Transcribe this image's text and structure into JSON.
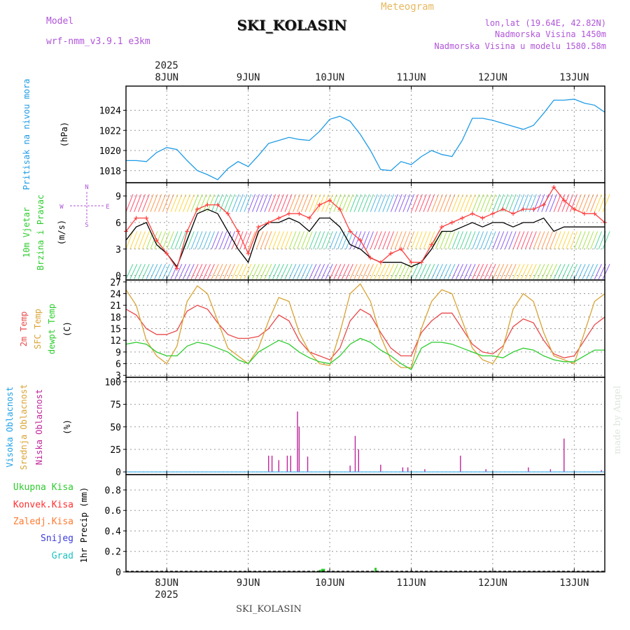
{
  "header": {
    "model_label": "Model",
    "model_name": "wrf-nmm_v3.9.1 e3km",
    "station": "SKI_KOLASIN",
    "product": "Meteogram",
    "coords": "lon,lat (19.64E, 42.82N)",
    "elevation": "Nadmorska Visina 1450m",
    "model_elevation": "Nadmorska Visina u modelu 1580.58m",
    "year": "2025",
    "footer_station": "SKI_KOLASIN",
    "credit": "made by Angel"
  },
  "colors": {
    "pressure": "#1e9be6",
    "wind_speed": "#000000",
    "wind_gust": "#ff4040",
    "temp_2m": "#e84a4a",
    "temp_sfc": "#d9a335",
    "dewpoint": "#2ecc2e",
    "cloud_high": "#1ea0e6",
    "cloud_mid": "#d9a335",
    "cloud_low": "#c0249a",
    "precip_total": "#2ecc2e",
    "precip_conv": "#ff3030",
    "precip_frozen": "#ff7a30",
    "snow": "#3a3adf",
    "hail": "#20c0c0",
    "title_purple": "#b055d8"
  },
  "time_axis": {
    "day_labels": [
      "8JUN",
      "9JUN",
      "10JUN",
      "11JUN",
      "12JUN",
      "13JUN"
    ],
    "day_positions_hours": [
      12,
      36,
      60,
      84,
      108,
      132
    ],
    "range_hours": [
      0,
      141
    ]
  },
  "chart_data": [
    {
      "type": "line",
      "panel": "pressure",
      "title": "Pritisak na nivou mora",
      "ylabel": "(hPa)",
      "ylim": [
        1016.8,
        1026.4
      ],
      "yticks": [
        1018,
        1020,
        1022,
        1024
      ],
      "x": [
        0,
        3,
        6,
        9,
        12,
        15,
        18,
        21,
        24,
        27,
        30,
        33,
        36,
        39,
        42,
        45,
        48,
        51,
        54,
        57,
        60,
        63,
        66,
        69,
        72,
        75,
        78,
        81,
        84,
        87,
        90,
        93,
        96,
        99,
        102,
        105,
        108,
        111,
        114,
        117,
        120,
        123,
        126,
        129,
        132,
        135,
        138,
        141
      ],
      "series": [
        {
          "name": "Pritisak",
          "values": [
            1019.0,
            1019.0,
            1018.9,
            1019.8,
            1020.3,
            1020.1,
            1019.0,
            1018.0,
            1017.6,
            1017.1,
            1018.2,
            1018.9,
            1018.4,
            1019.5,
            1020.7,
            1021.0,
            1021.3,
            1021.1,
            1021.0,
            1021.9,
            1023.1,
            1023.4,
            1022.9,
            1021.6,
            1020.0,
            1018.1,
            1018.0,
            1018.9,
            1018.6,
            1019.4,
            1020.0,
            1019.6,
            1019.4,
            1021.0,
            1023.2,
            1023.2,
            1023.0,
            1022.7,
            1022.4,
            1022.1,
            1022.5,
            1023.7,
            1025.0,
            1025.0,
            1025.1,
            1024.7,
            1024.5,
            1023.8
          ]
        }
      ]
    },
    {
      "type": "line",
      "panel": "wind",
      "title": "10m Vjetar Brzina i Pravac",
      "ylabel": "(m/s)",
      "ylim": [
        -0.5,
        10.5
      ],
      "yticks": [
        0,
        3,
        6,
        9
      ],
      "compass_labels": {
        "n": "N",
        "s": "S",
        "e": "E",
        "w": "W"
      },
      "x": [
        0,
        3,
        6,
        9,
        12,
        15,
        18,
        21,
        24,
        27,
        30,
        33,
        36,
        39,
        42,
        45,
        48,
        51,
        54,
        57,
        60,
        63,
        66,
        69,
        72,
        75,
        78,
        81,
        84,
        87,
        90,
        93,
        96,
        99,
        102,
        105,
        108,
        111,
        114,
        117,
        120,
        123,
        126,
        129,
        132,
        135,
        138,
        141
      ],
      "series": [
        {
          "name": "Brzina",
          "values": [
            4.0,
            5.5,
            6.0,
            3.5,
            2.5,
            1.0,
            4.0,
            7.0,
            7.5,
            7.0,
            5.0,
            3.0,
            1.5,
            5.0,
            6.0,
            6.0,
            6.5,
            6.0,
            5.0,
            6.5,
            6.5,
            5.5,
            3.5,
            3.0,
            2.0,
            1.5,
            1.5,
            1.5,
            1.0,
            1.5,
            3.0,
            5.0,
            5.0,
            5.5,
            6.0,
            5.5,
            6.0,
            6.0,
            5.5,
            6.0,
            6.0,
            6.5,
            5.0,
            5.5,
            5.5,
            5.5,
            5.5,
            5.5
          ]
        },
        {
          "name": "Udar",
          "values": [
            5.0,
            6.5,
            6.5,
            4.0,
            2.5,
            0.8,
            5.0,
            7.5,
            8.0,
            8.0,
            7.0,
            5.0,
            2.5,
            5.5,
            6.0,
            6.5,
            7.0,
            7.0,
            6.5,
            8.0,
            8.5,
            7.5,
            5.0,
            4.0,
            2.0,
            1.5,
            2.5,
            3.0,
            1.5,
            1.5,
            3.5,
            5.5,
            6.0,
            6.5,
            7.0,
            6.5,
            7.0,
            7.5,
            7.0,
            7.5,
            7.5,
            8.0,
            10.0,
            8.5,
            7.5,
            7.0,
            7.0,
            6.0
          ]
        }
      ]
    },
    {
      "type": "line",
      "panel": "temperature",
      "title": "2m Temp / SFC Temp / dewpt Temp",
      "ylabel": "(C)",
      "ylim": [
        2.5,
        27.5
      ],
      "yticks": [
        3,
        6,
        9,
        12,
        15,
        18,
        21,
        24,
        27
      ],
      "x": [
        0,
        3,
        6,
        9,
        12,
        15,
        18,
        21,
        24,
        27,
        30,
        33,
        36,
        39,
        42,
        45,
        48,
        51,
        54,
        57,
        60,
        63,
        66,
        69,
        72,
        75,
        78,
        81,
        84,
        87,
        90,
        93,
        96,
        99,
        102,
        105,
        108,
        111,
        114,
        117,
        120,
        123,
        126,
        129,
        132,
        135,
        138,
        141
      ],
      "series": [
        {
          "name": "2m Temp",
          "values": [
            20.0,
            18.5,
            15.0,
            13.5,
            13.5,
            14.5,
            19.5,
            21.0,
            20.0,
            16.5,
            13.5,
            12.5,
            12.5,
            13.0,
            15.0,
            18.5,
            17.0,
            12.0,
            9.0,
            8.0,
            7.0,
            10.0,
            17.0,
            20.0,
            18.5,
            14.0,
            10.0,
            8.0,
            8.0,
            14.0,
            17.0,
            19.0,
            19.0,
            15.0,
            11.0,
            9.0,
            8.5,
            10.5,
            15.5,
            17.5,
            16.5,
            12.0,
            8.5,
            7.5,
            8.0,
            12.0,
            16.0,
            18.0
          ]
        },
        {
          "name": "SFC Temp",
          "values": [
            25.0,
            21.0,
            12.0,
            8.0,
            6.0,
            10.5,
            22.0,
            26.0,
            24.0,
            17.0,
            10.0,
            8.0,
            6.0,
            10.0,
            17.0,
            23.0,
            22.0,
            14.0,
            9.0,
            6.0,
            5.5,
            14.0,
            24.0,
            26.5,
            22.0,
            13.0,
            7.0,
            5.0,
            5.0,
            15.0,
            22.0,
            25.0,
            24.0,
            17.0,
            10.0,
            7.0,
            6.0,
            10.0,
            20.0,
            24.0,
            22.0,
            14.0,
            8.0,
            7.0,
            6.0,
            14.0,
            22.0,
            24.0
          ]
        },
        {
          "name": "Dewpt Temp",
          "values": [
            11.0,
            11.5,
            11.0,
            9.0,
            8.0,
            8.0,
            10.5,
            11.5,
            11.0,
            10.0,
            9.0,
            7.0,
            6.0,
            9.0,
            10.5,
            12.0,
            11.0,
            9.0,
            7.5,
            6.5,
            6.0,
            8.0,
            11.0,
            12.5,
            11.5,
            9.5,
            8.0,
            6.0,
            4.5,
            10.0,
            11.5,
            11.5,
            11.0,
            10.0,
            9.0,
            8.0,
            8.0,
            7.5,
            9.0,
            10.0,
            9.5,
            8.0,
            7.0,
            6.5,
            6.5,
            8.0,
            9.5,
            9.5
          ]
        }
      ]
    },
    {
      "type": "bar",
      "panel": "clouds",
      "title": "Visoka Oblacnost / Srednja Oblacnost / Niska Oblacnost",
      "ylabel": "(%)",
      "ylim": [
        -3,
        105
      ],
      "yticks": [
        0,
        25,
        50,
        75,
        100
      ],
      "series": [
        {
          "name": "Niska Oblacnost",
          "x": [
            42.0,
            43.0,
            45.0,
            47.5,
            48.5,
            50.5,
            51.0,
            53.5,
            66.0,
            67.5,
            68.5,
            75.0,
            81.5,
            83.0,
            88.0,
            98.5,
            106.0,
            118.5,
            125.0,
            129.0,
            140.0
          ],
          "values": [
            18,
            18,
            13,
            18,
            18,
            67,
            50,
            17,
            7,
            40,
            25,
            8,
            5,
            5,
            3,
            18,
            3,
            5,
            3,
            37,
            2
          ]
        }
      ]
    },
    {
      "type": "bar",
      "panel": "precip",
      "title": "1hr Precip",
      "ylabel": "1hr Precip (mm)",
      "ylim": [
        0,
        0.95
      ],
      "yticks": [
        0,
        0.2,
        0.4,
        0.6,
        0.8
      ],
      "yticklabels": [
        "0",
        "0.2",
        "0.4",
        "0.6",
        "0.8"
      ],
      "legend": [
        "Ukupna Kisa",
        "Konvek.Kisa",
        "Zaledj.Kisa",
        "Snijeg",
        "Grad"
      ],
      "series": [
        {
          "name": "Ukupna Kisa",
          "x": [
            56.5,
            57.2,
            57.8,
            58.3,
            73.5
          ],
          "values": [
            0.01,
            0.02,
            0.03,
            0.03,
            0.04
          ]
        }
      ]
    }
  ]
}
